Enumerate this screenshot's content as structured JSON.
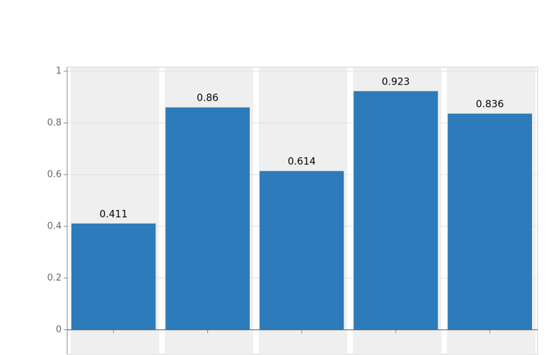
{
  "chart_data": {
    "type": "bar",
    "categories": [
      null,
      null,
      null,
      null,
      null
    ],
    "values": [
      0.411,
      0.86,
      0.614,
      0.923,
      0.836
    ],
    "color": "#2d7bba",
    "ylim": [
      -0.095,
      1.016
    ],
    "yticks": [
      0,
      0.2,
      0.4,
      0.6,
      0.8,
      1
    ],
    "grid": true
  }
}
